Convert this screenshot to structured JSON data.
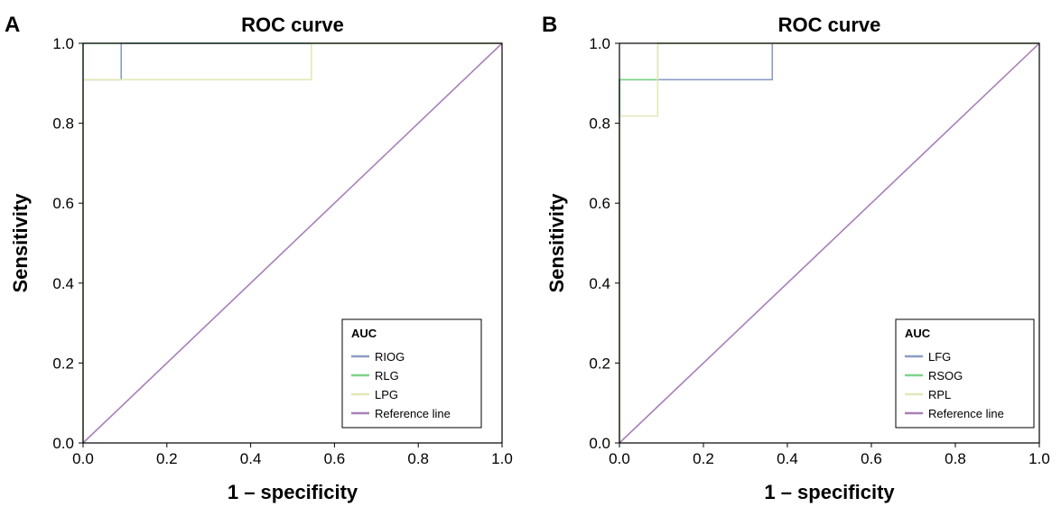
{
  "colors": {
    "series_1": "#8a9cc4",
    "series_2": "#7ed389",
    "series_3": "#e3e8b8",
    "reference": "#a880b8",
    "axes": "#000000"
  },
  "chart_data": [
    {
      "panel_label": "A",
      "type": "line",
      "title": "ROC curve",
      "xlabel": "1 – specificity",
      "ylabel": "Sensitivity",
      "xlim": [
        0,
        1
      ],
      "ylim": [
        0,
        1
      ],
      "xticks": [
        "0.0",
        "0.2",
        "0.4",
        "0.6",
        "0.8",
        "1.0"
      ],
      "yticks": [
        "0.0",
        "0.2",
        "0.4",
        "0.6",
        "0.8",
        "1.0"
      ],
      "grid": false,
      "legend": {
        "title": "AUC",
        "position": "bottom-right"
      },
      "series": [
        {
          "name": "RIOG",
          "color_key": "series_1",
          "x": [
            0,
            0,
            0.091,
            0.091,
            1
          ],
          "y": [
            0,
            0.909,
            0.909,
            1,
            1
          ]
        },
        {
          "name": "RLG",
          "color_key": "series_2",
          "x": [
            0,
            0,
            1
          ],
          "y": [
            0,
            1,
            1
          ]
        },
        {
          "name": "LPG",
          "color_key": "series_3",
          "x": [
            0,
            0,
            0.545,
            0.545,
            1
          ],
          "y": [
            0,
            0.909,
            0.909,
            1,
            1
          ]
        },
        {
          "name": "Reference line",
          "color_key": "reference",
          "x": [
            0,
            1
          ],
          "y": [
            0,
            1
          ]
        }
      ]
    },
    {
      "panel_label": "B",
      "type": "line",
      "title": "ROC curve",
      "xlabel": "1 – specificity",
      "ylabel": "Sensitivity",
      "xlim": [
        0,
        1
      ],
      "ylim": [
        0,
        1
      ],
      "xticks": [
        "0.0",
        "0.2",
        "0.4",
        "0.6",
        "0.8",
        "1.0"
      ],
      "yticks": [
        "0.0",
        "0.2",
        "0.4",
        "0.6",
        "0.8",
        "1.0"
      ],
      "grid": false,
      "legend": {
        "title": "AUC",
        "position": "bottom-right"
      },
      "series": [
        {
          "name": "LFG",
          "color_key": "series_1",
          "x": [
            0,
            0,
            0.364,
            0.364,
            1
          ],
          "y": [
            0,
            0.909,
            0.909,
            1,
            1
          ]
        },
        {
          "name": "RSOG",
          "color_key": "series_2",
          "x": [
            0,
            0,
            0.091,
            0.091,
            1
          ],
          "y": [
            0,
            0.909,
            0.909,
            1,
            1
          ]
        },
        {
          "name": "RPL",
          "color_key": "series_3",
          "x": [
            0,
            0,
            0.091,
            0.091,
            1
          ],
          "y": [
            0,
            0.818,
            0.818,
            1,
            1
          ]
        },
        {
          "name": "Reference line",
          "color_key": "reference",
          "x": [
            0,
            1
          ],
          "y": [
            0,
            1
          ]
        }
      ]
    }
  ]
}
